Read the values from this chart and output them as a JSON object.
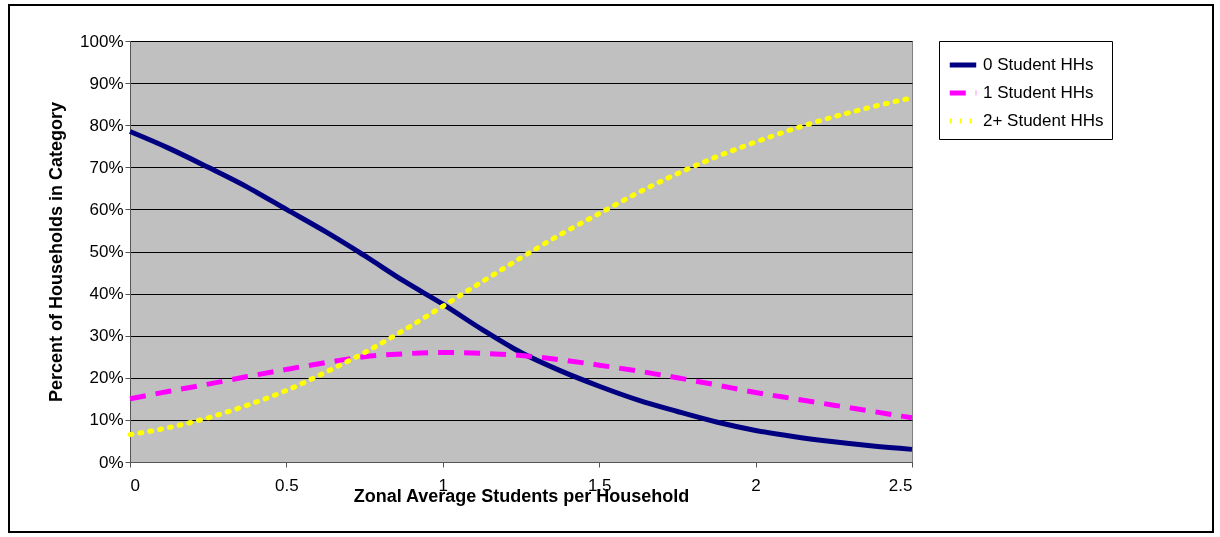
{
  "chart_data": {
    "type": "line",
    "xlabel": "Zonal Average Students per Household",
    "ylabel": "Percent of Households in Category",
    "x": [
      0,
      0.125,
      0.25,
      0.375,
      0.5,
      0.625,
      0.75,
      0.875,
      1,
      1.125,
      1.25,
      1.375,
      1.5,
      1.625,
      1.75,
      1.875,
      2,
      2.125,
      2.25,
      2.375,
      2.5
    ],
    "series": [
      {
        "name": "0 Student HHs",
        "color": "#000080",
        "line_style": "solid",
        "values": [
          78.5,
          74.5,
          70,
          65.3,
          60,
          54.7,
          49,
          43,
          37.5,
          31.5,
          26,
          21.7,
          18,
          14.7,
          12,
          9.5,
          7.5,
          6,
          4.8,
          3.8,
          3
        ]
      },
      {
        "name": "1 Student HHs",
        "color": "#ff00ff",
        "line_style": "dashed",
        "values": [
          15,
          16.8,
          18.5,
          20.3,
          22,
          23.6,
          25,
          25.7,
          26,
          25.8,
          25.3,
          24.3,
          23,
          21.6,
          20,
          18.3,
          16.5,
          15,
          13.5,
          12,
          10.5
        ]
      },
      {
        "name": "2+ Student HHs",
        "color": "#ffff00",
        "line_style": "dotted",
        "values": [
          6.5,
          8.2,
          10.5,
          13.5,
          17,
          21.3,
          26,
          31.3,
          37,
          42.8,
          48.5,
          54,
          59,
          64,
          68.5,
          72.5,
          76,
          79.2,
          82,
          84.4,
          86.5
        ]
      }
    ],
    "xlim": [
      0,
      2.5
    ],
    "xticks": [
      0,
      0.5,
      1,
      1.5,
      2,
      2.5
    ],
    "ylim": [
      0,
      100
    ],
    "yticks": [
      {
        "value": 0,
        "label": "0%"
      },
      {
        "value": 10,
        "label": "10%"
      },
      {
        "value": 20,
        "label": "20%"
      },
      {
        "value": 30,
        "label": "30%"
      },
      {
        "value": 40,
        "label": "40%"
      },
      {
        "value": 50,
        "label": "50%"
      },
      {
        "value": 60,
        "label": "60%"
      },
      {
        "value": 70,
        "label": "70%"
      },
      {
        "value": 80,
        "label": "80%"
      },
      {
        "value": 90,
        "label": "90%"
      },
      {
        "value": 100,
        "label": "100%"
      }
    ],
    "grid": "y",
    "legend": "right",
    "marker": "none"
  }
}
